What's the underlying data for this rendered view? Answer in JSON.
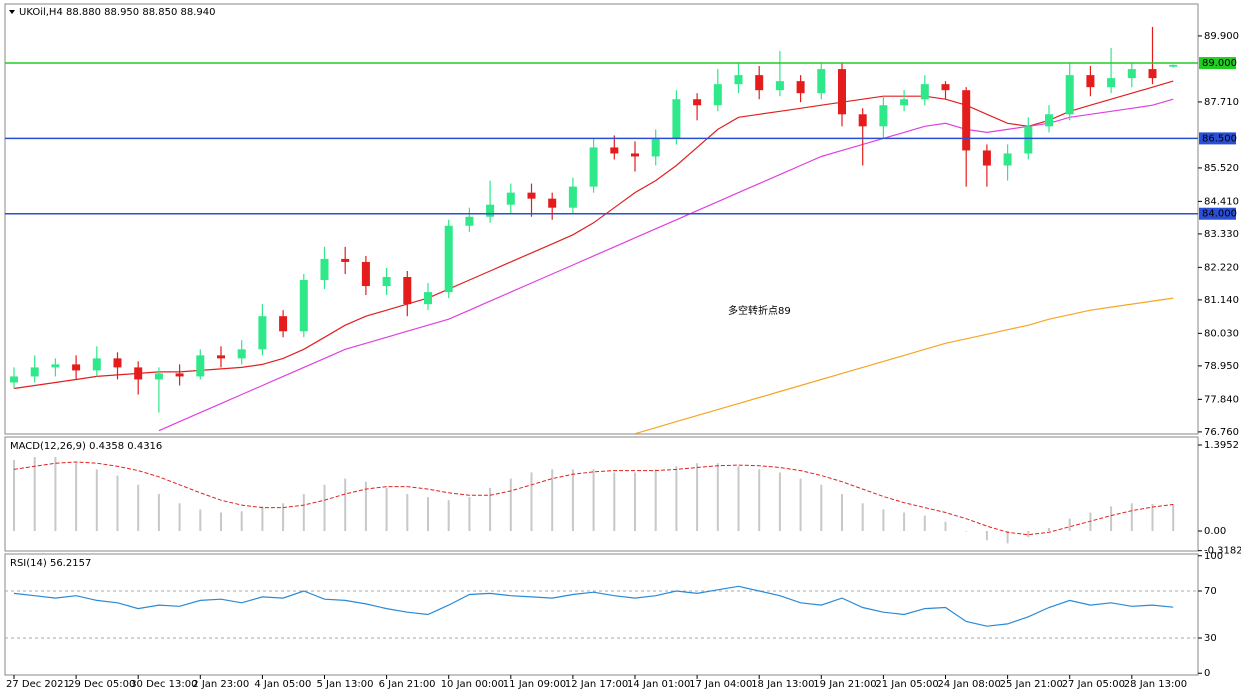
{
  "chart_data": [
    {
      "type": "candlestick",
      "title": "UKOil,H4  88.880 88.950 88.850 88.940",
      "annotation": "多空转折点89",
      "categories": [
        "27 Dec 2021",
        null,
        null,
        "29 Dec 05:00",
        null,
        null,
        "30 Dec 13:00",
        null,
        null,
        "2 Jan 23:00",
        null,
        null,
        "4 Jan 05:00",
        null,
        null,
        "5 Jan 13:00",
        null,
        null,
        "6 Jan 21:00",
        null,
        null,
        "10 Jan 00:00",
        null,
        null,
        "11 Jan 09:00",
        null,
        null,
        "12 Jan 17:00",
        null,
        null,
        "14 Jan 01:00",
        null,
        null,
        "17 Jan 04:00",
        null,
        null,
        "18 Jan 13:00",
        null,
        null,
        "19 Jan 21:00",
        null,
        null,
        "21 Jan 05:00",
        null,
        null,
        "24 Jan 08:00",
        null,
        null,
        "25 Jan 21:00",
        null,
        null,
        "27 Jan 05:00",
        null,
        null,
        "28 Jan 13:00",
        null,
        null
      ],
      "open": [
        78.4,
        78.6,
        78.9,
        79.0,
        78.8,
        79.2,
        78.9,
        78.5,
        78.7,
        78.6,
        79.3,
        79.2,
        79.5,
        80.6,
        80.1,
        81.8,
        82.5,
        82.4,
        81.6,
        81.9,
        81.0,
        81.4,
        83.6,
        83.9,
        84.3,
        84.7,
        84.5,
        84.2,
        84.9,
        86.2,
        86.0,
        85.9,
        86.5,
        87.8,
        87.6,
        88.3,
        88.6,
        88.1,
        88.4,
        88.0,
        88.8,
        87.3,
        86.9,
        87.6,
        87.8,
        88.3,
        88.1,
        86.1,
        85.6,
        86.0,
        86.9,
        87.3,
        88.6,
        88.2,
        88.5,
        88.8,
        88.88
      ],
      "high": [
        78.9,
        79.3,
        79.2,
        79.3,
        79.6,
        79.4,
        79.1,
        78.9,
        79.0,
        79.5,
        79.6,
        79.8,
        81.0,
        80.8,
        82.0,
        82.9,
        82.9,
        82.6,
        82.2,
        82.1,
        81.7,
        83.8,
        84.2,
        85.1,
        85.0,
        85.0,
        84.7,
        85.2,
        86.5,
        86.6,
        86.4,
        86.8,
        88.1,
        88.0,
        88.8,
        89.0,
        88.9,
        89.4,
        88.6,
        89.0,
        89.0,
        87.5,
        87.9,
        88.1,
        88.6,
        88.4,
        88.2,
        86.3,
        86.3,
        87.2,
        87.6,
        89.0,
        88.9,
        89.5,
        89.0,
        90.2,
        88.95
      ],
      "low": [
        78.2,
        78.4,
        78.6,
        78.5,
        78.6,
        78.5,
        78.0,
        77.4,
        78.3,
        78.5,
        78.9,
        79.0,
        79.3,
        79.9,
        79.9,
        81.5,
        82.0,
        81.3,
        81.3,
        80.6,
        80.8,
        81.2,
        83.4,
        83.7,
        84.0,
        83.9,
        83.8,
        84.0,
        84.7,
        85.8,
        85.4,
        85.6,
        86.3,
        87.1,
        87.4,
        88.0,
        87.8,
        87.9,
        87.7,
        87.8,
        86.9,
        85.6,
        86.5,
        87.4,
        87.6,
        87.8,
        84.9,
        84.9,
        85.1,
        85.8,
        86.7,
        87.1,
        87.9,
        88.0,
        88.2,
        88.3,
        88.85
      ],
      "close": [
        78.6,
        78.9,
        79.0,
        78.8,
        79.2,
        78.9,
        78.5,
        78.7,
        78.6,
        79.3,
        79.2,
        79.5,
        80.6,
        80.1,
        81.8,
        82.5,
        82.4,
        81.6,
        81.9,
        81.0,
        81.4,
        83.6,
        83.9,
        84.3,
        84.7,
        84.5,
        84.2,
        84.9,
        86.2,
        86.0,
        85.9,
        86.5,
        87.8,
        87.6,
        88.3,
        88.6,
        88.1,
        88.4,
        88.0,
        88.8,
        87.3,
        86.9,
        87.6,
        87.8,
        88.3,
        88.1,
        86.1,
        85.6,
        86.0,
        86.9,
        87.3,
        88.6,
        88.2,
        88.5,
        88.8,
        88.5,
        88.94
      ],
      "up_color": "#2ee88a",
      "down_color": "#e51c1c",
      "lines": [
        {
          "color": "#e02020",
          "values": [
            78.2,
            78.3,
            78.4,
            78.5,
            78.6,
            78.65,
            78.7,
            78.75,
            78.75,
            78.8,
            78.85,
            78.9,
            79.0,
            79.2,
            79.5,
            79.9,
            80.3,
            80.6,
            80.8,
            81.0,
            81.2,
            81.5,
            81.8,
            82.1,
            82.4,
            82.7,
            83.0,
            83.3,
            83.7,
            84.2,
            84.7,
            85.1,
            85.6,
            86.2,
            86.8,
            87.2,
            87.3,
            87.4,
            87.5,
            87.6,
            87.7,
            87.8,
            87.9,
            87.9,
            87.9,
            87.8,
            87.6,
            87.3,
            87.0,
            86.9,
            87.1,
            87.4,
            87.6,
            87.8,
            88.0,
            88.2,
            88.4
          ]
        },
        {
          "color": "#e040e0",
          "values": [
            null,
            null,
            null,
            null,
            null,
            null,
            null,
            76.8,
            77.1,
            77.4,
            77.7,
            78.0,
            78.3,
            78.6,
            78.9,
            79.2,
            79.5,
            79.7,
            79.9,
            80.1,
            80.3,
            80.5,
            80.8,
            81.1,
            81.4,
            81.7,
            82.0,
            82.3,
            82.6,
            82.9,
            83.2,
            83.5,
            83.8,
            84.1,
            84.4,
            84.7,
            85.0,
            85.3,
            85.6,
            85.9,
            86.1,
            86.3,
            86.5,
            86.7,
            86.9,
            87.0,
            86.8,
            86.7,
            86.8,
            86.9,
            87.0,
            87.2,
            87.3,
            87.4,
            87.5,
            87.6,
            87.8
          ]
        },
        {
          "color": "#f5a623",
          "values": [
            null,
            null,
            null,
            null,
            null,
            null,
            null,
            null,
            null,
            null,
            null,
            null,
            null,
            null,
            null,
            null,
            null,
            null,
            null,
            null,
            null,
            null,
            null,
            null,
            null,
            null,
            null,
            null,
            null,
            null,
            76.7,
            76.9,
            77.1,
            77.3,
            77.5,
            77.7,
            77.9,
            78.1,
            78.3,
            78.5,
            78.7,
            78.9,
            79.1,
            79.3,
            79.5,
            79.7,
            79.85,
            80.0,
            80.15,
            80.3,
            80.5,
            80.65,
            80.8,
            80.9,
            81.0,
            81.1,
            81.2
          ]
        }
      ],
      "hlines": [
        {
          "value": 89,
          "label": "89.000",
          "color": "#22cc22"
        },
        {
          "value": 86.5,
          "label": "86.500",
          "color": "#2a4fd6"
        },
        {
          "value": 84,
          "label": "84.000",
          "color": "#2a4fd6"
        }
      ],
      "ylim": [
        76.69,
        90.96
      ],
      "yticks": [
        {
          "value": 89.9,
          "label": "89.900"
        },
        {
          "value": 87.71,
          "label": "87.710"
        },
        {
          "value": 85.52,
          "label": "85.520"
        },
        {
          "value": 84.41,
          "label": "84.410"
        },
        {
          "value": 83.33,
          "label": "83.330"
        },
        {
          "value": 82.22,
          "label": "82.220"
        },
        {
          "value": 81.14,
          "label": "81.140"
        },
        {
          "value": 80.03,
          "label": "80.030"
        },
        {
          "value": 78.95,
          "label": "78.950"
        },
        {
          "value": 77.84,
          "label": "77.840"
        },
        {
          "value": 76.76,
          "label": "76.760"
        }
      ]
    },
    {
      "type": "macd",
      "title": "MACD(12,26,9) 0.4358 0.4316",
      "histogram": {
        "color": "#c8c8c8",
        "values": [
          1.15,
          1.2,
          1.2,
          1.1,
          1.0,
          0.9,
          0.75,
          0.6,
          0.45,
          0.35,
          0.3,
          0.32,
          0.4,
          0.45,
          0.6,
          0.75,
          0.85,
          0.8,
          0.7,
          0.6,
          0.55,
          0.5,
          0.55,
          0.7,
          0.85,
          0.95,
          1.0,
          1.0,
          1.0,
          0.95,
          0.95,
          1.0,
          1.05,
          1.1,
          1.1,
          1.05,
          1.0,
          0.95,
          0.85,
          0.75,
          0.6,
          0.45,
          0.35,
          0.3,
          0.25,
          0.15,
          0.0,
          -0.15,
          -0.2,
          -0.1,
          0.05,
          0.2,
          0.3,
          0.4,
          0.45,
          0.44,
          0.4358
        ]
      },
      "signal": {
        "color": "#e02020",
        "values": [
          1.0,
          1.05,
          1.1,
          1.12,
          1.1,
          1.05,
          0.98,
          0.88,
          0.75,
          0.62,
          0.5,
          0.42,
          0.38,
          0.38,
          0.42,
          0.5,
          0.6,
          0.68,
          0.72,
          0.72,
          0.68,
          0.62,
          0.58,
          0.58,
          0.65,
          0.75,
          0.85,
          0.92,
          0.96,
          0.98,
          0.98,
          0.98,
          1.0,
          1.03,
          1.06,
          1.07,
          1.06,
          1.03,
          0.98,
          0.9,
          0.8,
          0.68,
          0.56,
          0.46,
          0.38,
          0.3,
          0.2,
          0.08,
          -0.02,
          -0.06,
          -0.02,
          0.07,
          0.16,
          0.25,
          0.33,
          0.39,
          0.4316
        ]
      },
      "ylim": [
        -0.324,
        1.525
      ],
      "yticks": [
        1.3952,
        {
          "value": 0,
          "label": "0.00"
        },
        -0.3182
      ]
    },
    {
      "type": "line",
      "title": "RSI(14) 56.2157",
      "color": "#2a8ad6",
      "values": [
        68,
        66,
        64,
        66,
        62,
        60,
        55,
        58,
        57,
        62,
        63,
        60,
        65,
        64,
        70,
        63,
        62,
        59,
        55,
        52,
        50,
        58,
        67,
        68,
        66,
        65,
        64,
        67,
        69,
        66,
        64,
        66,
        70,
        68,
        71,
        74,
        70,
        66,
        60,
        58,
        64,
        56,
        52,
        50,
        55,
        56,
        44,
        40,
        42,
        48,
        56,
        62,
        58,
        60,
        57,
        58,
        56.2157
      ],
      "ylim": [
        -1.5,
        101.5
      ],
      "yticks": [
        100,
        70,
        30,
        0
      ],
      "levels": [
        70,
        30
      ]
    }
  ]
}
